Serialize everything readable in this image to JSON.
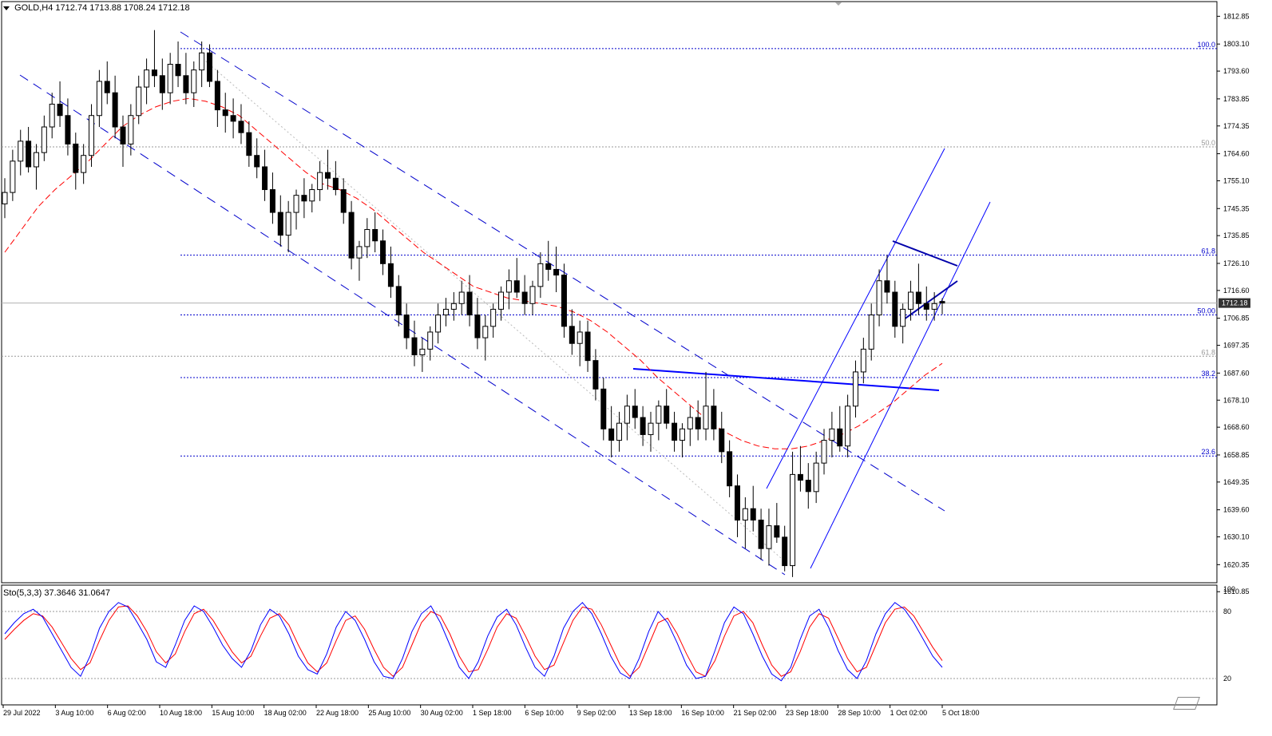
{
  "header": {
    "symbol": "GOLD,H4",
    "ohlc": "1712.74 1713.88 1708.24 1712.18"
  },
  "stochastic": {
    "label": "Sto(5,3,3)",
    "values": "37.3646 31.0647",
    "scale": [
      {
        "value": 100,
        "label": "100"
      },
      {
        "value": 80,
        "label": "80"
      },
      {
        "value": 20,
        "label": "20"
      }
    ],
    "levels": [
      80,
      20
    ],
    "main_color": "#0000ff",
    "signal_color": "#ff0000"
  },
  "price_axis": {
    "min": 1614,
    "max": 1818,
    "ticks": [
      {
        "value": 1812.85,
        "label": "1812.85"
      },
      {
        "value": 1803.1,
        "label": "1803.10"
      },
      {
        "value": 1793.6,
        "label": "1793.60"
      },
      {
        "value": 1783.85,
        "label": "1783.85"
      },
      {
        "value": 1774.35,
        "label": "1774.35"
      },
      {
        "value": 1764.6,
        "label": "1764.60"
      },
      {
        "value": 1755.1,
        "label": "1755.10"
      },
      {
        "value": 1745.35,
        "label": "1745.35"
      },
      {
        "value": 1735.85,
        "label": "1735.85"
      },
      {
        "value": 1726.1,
        "label": "1726.10"
      },
      {
        "value": 1716.6,
        "label": "1716.60"
      },
      {
        "value": 1706.85,
        "label": "1706.85"
      },
      {
        "value": 1697.35,
        "label": "1697.35"
      },
      {
        "value": 1687.6,
        "label": "1687.60"
      },
      {
        "value": 1678.1,
        "label": "1678.10"
      },
      {
        "value": 1668.6,
        "label": "1668.60"
      },
      {
        "value": 1658.85,
        "label": "1658.85"
      },
      {
        "value": 1649.35,
        "label": "1649.35"
      },
      {
        "value": 1639.6,
        "label": "1639.60"
      },
      {
        "value": 1630.1,
        "label": "1630.10"
      },
      {
        "value": 1620.35,
        "label": "1620.35"
      },
      {
        "value": 1610.85,
        "label": "1610.85"
      }
    ],
    "current_price": "1712.18"
  },
  "time_axis": {
    "labels": [
      "29 Jul 2022",
      "3 Aug 10:00",
      "6 Aug 02:00",
      "10 Aug 18:00",
      "15 Aug 10:00",
      "18 Aug 02:00",
      "22 Aug 18:00",
      "25 Aug 10:00",
      "30 Aug 02:00",
      "1 Sep 18:00",
      "6 Sep 10:00",
      "9 Sep 02:00",
      "13 Sep 18:00",
      "16 Sep 10:00",
      "21 Sep 02:00",
      "23 Sep 18:00",
      "28 Sep 10:00",
      "1 Oct 02:00",
      "5 Oct 18:00"
    ]
  },
  "fib_levels": [
    {
      "label": "100.0",
      "price": 1801.5,
      "color": "#0000cc",
      "style": "dotted"
    },
    {
      "label": "50.0",
      "price": 1767.0,
      "color": "#999999",
      "style": "dotted"
    },
    {
      "label": "61.8",
      "price": 1729.0,
      "color": "#0000cc",
      "style": "dotted"
    },
    {
      "label": "50.00",
      "price": 1708.0,
      "color": "#0000cc",
      "style": "dotted"
    },
    {
      "label": "61.8",
      "price": 1693.5,
      "color": "#999999",
      "style": "dotted"
    },
    {
      "label": "38.2",
      "price": 1686.0,
      "color": "#0000cc",
      "style": "dotted"
    },
    {
      "label": "23.6",
      "price": 1658.5,
      "color": "#0000cc",
      "style": "dotted"
    }
  ],
  "chart_data": {
    "type": "candlestick",
    "symbol": "GOLD",
    "timeframe": "H4",
    "candles": [
      [
        1747,
        1756,
        1742,
        1751
      ],
      [
        1751,
        1766,
        1748,
        1762
      ],
      [
        1762,
        1773,
        1757,
        1769
      ],
      [
        1769,
        1774,
        1758,
        1760
      ],
      [
        1760,
        1768,
        1752,
        1765
      ],
      [
        1765,
        1778,
        1762,
        1774
      ],
      [
        1774,
        1786,
        1770,
        1782
      ],
      [
        1782,
        1790,
        1774,
        1778
      ],
      [
        1778,
        1784,
        1764,
        1768
      ],
      [
        1768,
        1772,
        1752,
        1758
      ],
      [
        1758,
        1768,
        1754,
        1764
      ],
      [
        1764,
        1782,
        1760,
        1778
      ],
      [
        1778,
        1794,
        1774,
        1790
      ],
      [
        1790,
        1797,
        1782,
        1786
      ],
      [
        1786,
        1792,
        1770,
        1774
      ],
      [
        1774,
        1778,
        1760,
        1768
      ],
      [
        1768,
        1782,
        1764,
        1778
      ],
      [
        1778,
        1792,
        1775,
        1788
      ],
      [
        1788,
        1798,
        1782,
        1794
      ],
      [
        1794,
        1808,
        1788,
        1792
      ],
      [
        1792,
        1798,
        1780,
        1786
      ],
      [
        1786,
        1800,
        1782,
        1796
      ],
      [
        1796,
        1804,
        1788,
        1792
      ],
      [
        1792,
        1800,
        1782,
        1786
      ],
      [
        1786,
        1797,
        1781,
        1794
      ],
      [
        1794,
        1804,
        1788,
        1800
      ],
      [
        1800,
        1803,
        1788,
        1790
      ],
      [
        1790,
        1794,
        1774,
        1780
      ],
      [
        1780,
        1786,
        1772,
        1778
      ],
      [
        1778,
        1784,
        1770,
        1776
      ],
      [
        1776,
        1782,
        1768,
        1772
      ],
      [
        1772,
        1776,
        1760,
        1764
      ],
      [
        1764,
        1770,
        1756,
        1760
      ],
      [
        1760,
        1766,
        1748,
        1752
      ],
      [
        1752,
        1758,
        1740,
        1744
      ],
      [
        1744,
        1750,
        1732,
        1736
      ],
      [
        1736,
        1748,
        1730,
        1744
      ],
      [
        1744,
        1752,
        1738,
        1750
      ],
      [
        1750,
        1756,
        1742,
        1748
      ],
      [
        1748,
        1754,
        1744,
        1752
      ],
      [
        1752,
        1762,
        1748,
        1758
      ],
      [
        1758,
        1766,
        1752,
        1756
      ],
      [
        1756,
        1762,
        1750,
        1752
      ],
      [
        1752,
        1756,
        1740,
        1744
      ],
      [
        1744,
        1748,
        1724,
        1728
      ],
      [
        1728,
        1734,
        1720,
        1732
      ],
      [
        1732,
        1742,
        1728,
        1738
      ],
      [
        1738,
        1744,
        1730,
        1734
      ],
      [
        1734,
        1738,
        1722,
        1726
      ],
      [
        1726,
        1732,
        1714,
        1718
      ],
      [
        1718,
        1722,
        1704,
        1708
      ],
      [
        1708,
        1712,
        1696,
        1700
      ],
      [
        1700,
        1706,
        1690,
        1694
      ],
      [
        1694,
        1700,
        1688,
        1696
      ],
      [
        1696,
        1704,
        1692,
        1702
      ],
      [
        1702,
        1712,
        1698,
        1708
      ],
      [
        1708,
        1714,
        1704,
        1710
      ],
      [
        1710,
        1716,
        1706,
        1712
      ],
      [
        1712,
        1720,
        1708,
        1716
      ],
      [
        1716,
        1722,
        1704,
        1708
      ],
      [
        1708,
        1714,
        1696,
        1700
      ],
      [
        1700,
        1708,
        1692,
        1704
      ],
      [
        1704,
        1712,
        1700,
        1710
      ],
      [
        1710,
        1718,
        1706,
        1716
      ],
      [
        1716,
        1724,
        1710,
        1720
      ],
      [
        1720,
        1728,
        1714,
        1716
      ],
      [
        1716,
        1722,
        1708,
        1712
      ],
      [
        1712,
        1720,
        1708,
        1718
      ],
      [
        1718,
        1730,
        1714,
        1726
      ],
      [
        1726,
        1734,
        1720,
        1724
      ],
      [
        1724,
        1732,
        1716,
        1722
      ],
      [
        1722,
        1726,
        1700,
        1704
      ],
      [
        1704,
        1710,
        1694,
        1698
      ],
      [
        1698,
        1706,
        1690,
        1702
      ],
      [
        1702,
        1706,
        1688,
        1692
      ],
      [
        1692,
        1696,
        1678,
        1682
      ],
      [
        1682,
        1686,
        1664,
        1668
      ],
      [
        1668,
        1676,
        1658,
        1664
      ],
      [
        1664,
        1674,
        1660,
        1670
      ],
      [
        1670,
        1680,
        1664,
        1676
      ],
      [
        1676,
        1682,
        1668,
        1672
      ],
      [
        1672,
        1676,
        1662,
        1666
      ],
      [
        1666,
        1674,
        1660,
        1670
      ],
      [
        1670,
        1678,
        1664,
        1676
      ],
      [
        1676,
        1682,
        1668,
        1670
      ],
      [
        1670,
        1674,
        1660,
        1664
      ],
      [
        1664,
        1670,
        1658,
        1668
      ],
      [
        1668,
        1676,
        1662,
        1672
      ],
      [
        1672,
        1678,
        1664,
        1668
      ],
      [
        1668,
        1688,
        1664,
        1676
      ],
      [
        1676,
        1682,
        1664,
        1668
      ],
      [
        1668,
        1674,
        1656,
        1660
      ],
      [
        1660,
        1664,
        1644,
        1648
      ],
      [
        1648,
        1652,
        1630,
        1636
      ],
      [
        1636,
        1644,
        1626,
        1640
      ],
      [
        1640,
        1648,
        1632,
        1636
      ],
      [
        1636,
        1640,
        1622,
        1626
      ],
      [
        1626,
        1640,
        1620,
        1634
      ],
      [
        1634,
        1642,
        1628,
        1630
      ],
      [
        1630,
        1634,
        1618,
        1620
      ],
      [
        1620,
        1660,
        1616,
        1652
      ],
      [
        1652,
        1662,
        1646,
        1650
      ],
      [
        1650,
        1656,
        1640,
        1646
      ],
      [
        1646,
        1660,
        1642,
        1656
      ],
      [
        1656,
        1668,
        1652,
        1664
      ],
      [
        1664,
        1674,
        1658,
        1668
      ],
      [
        1668,
        1676,
        1660,
        1662
      ],
      [
        1662,
        1680,
        1658,
        1676
      ],
      [
        1676,
        1692,
        1672,
        1688
      ],
      [
        1688,
        1700,
        1684,
        1696
      ],
      [
        1696,
        1712,
        1692,
        1708
      ],
      [
        1708,
        1724,
        1704,
        1720
      ],
      [
        1720,
        1729,
        1712,
        1716
      ],
      [
        1716,
        1720,
        1700,
        1704
      ],
      [
        1704,
        1712,
        1698,
        1710
      ],
      [
        1710,
        1720,
        1706,
        1716
      ],
      [
        1716,
        1726,
        1708,
        1712
      ],
      [
        1712,
        1718,
        1706,
        1710
      ],
      [
        1710,
        1716,
        1706,
        1712
      ],
      [
        1712.74,
        1713.88,
        1708.24,
        1712.18
      ]
    ],
    "moving_average": {
      "color": "#ff0000",
      "style": "dashed",
      "values": [
        1730,
        1738,
        1746,
        1752,
        1757,
        1762,
        1768,
        1774,
        1778,
        1781,
        1783,
        1784,
        1783,
        1781,
        1778,
        1773,
        1768,
        1763,
        1758,
        1754,
        1752,
        1749,
        1745,
        1740,
        1735,
        1730,
        1726,
        1722,
        1718,
        1716,
        1714,
        1713,
        1712,
        1711,
        1709,
        1706,
        1702,
        1697,
        1692,
        1686,
        1681,
        1676,
        1671,
        1667,
        1664,
        1662,
        1661,
        1661,
        1662,
        1664,
        1666,
        1669,
        1673,
        1677,
        1682,
        1687,
        1691
      ]
    },
    "stochastic_main": [
      60,
      70,
      78,
      82,
      75,
      60,
      45,
      30,
      22,
      40,
      65,
      80,
      88,
      84,
      70,
      55,
      35,
      30,
      50,
      72,
      85,
      80,
      66,
      50,
      38,
      30,
      45,
      68,
      82,
      76,
      60,
      40,
      28,
      24,
      42,
      66,
      80,
      72,
      55,
      35,
      22,
      20,
      38,
      62,
      78,
      85,
      70,
      50,
      30,
      20,
      35,
      58,
      75,
      82,
      68,
      48,
      30,
      22,
      40,
      65,
      80,
      88,
      78,
      60,
      40,
      25,
      20,
      38,
      62,
      80,
      70,
      52,
      32,
      20,
      22,
      45,
      70,
      84,
      78,
      60,
      40,
      24,
      18,
      30,
      55,
      76,
      82,
      66,
      45,
      28,
      20,
      36,
      60,
      78,
      88,
      82,
      70,
      55,
      40,
      30
    ],
    "stochastic_signal": [
      55,
      64,
      72,
      78,
      76,
      66,
      52,
      38,
      28,
      34,
      54,
      72,
      84,
      85,
      76,
      62,
      44,
      34,
      42,
      62,
      78,
      82,
      72,
      58,
      44,
      34,
      40,
      58,
      74,
      78,
      68,
      50,
      34,
      26,
      34,
      54,
      72,
      76,
      64,
      46,
      30,
      22,
      30,
      50,
      70,
      80,
      76,
      60,
      40,
      26,
      28,
      46,
      66,
      78,
      74,
      58,
      40,
      28,
      32,
      52,
      72,
      84,
      82,
      68,
      50,
      32,
      22,
      30,
      50,
      70,
      74,
      60,
      42,
      26,
      22,
      36,
      58,
      76,
      80,
      70,
      50,
      32,
      22,
      26,
      44,
      66,
      78,
      74,
      56,
      38,
      26,
      30,
      50,
      70,
      82,
      84,
      76,
      62,
      48,
      36
    ]
  }
}
